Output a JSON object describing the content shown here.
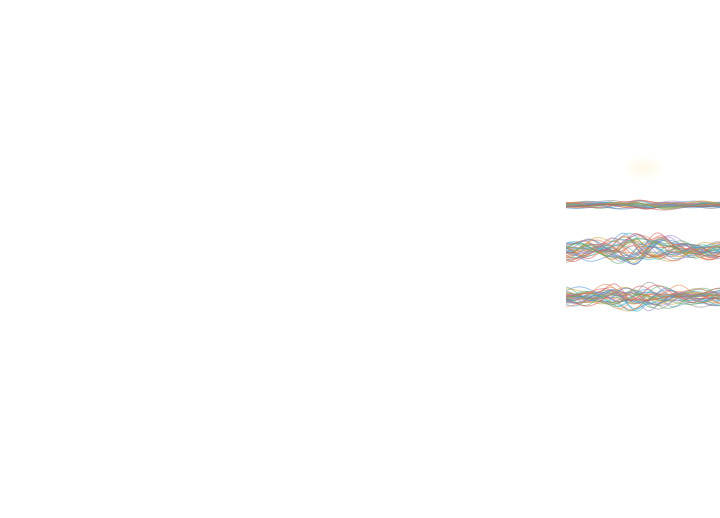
{
  "scene": {
    "background": "#ffffff",
    "glow_color": "#fff4d6",
    "palette": [
      "#4c8fd6",
      "#e9874a",
      "#5aa866",
      "#d45757",
      "#9a7ec9",
      "#3fb4c4",
      "#c7a43a",
      "#8a8a8a"
    ],
    "strips": [
      {
        "name": "top",
        "line_count": 28,
        "amplitude": 0.35
      },
      {
        "name": "middle",
        "line_count": 36,
        "amplitude": 0.8
      },
      {
        "name": "bottom",
        "line_count": 36,
        "amplitude": 0.7
      }
    ]
  }
}
